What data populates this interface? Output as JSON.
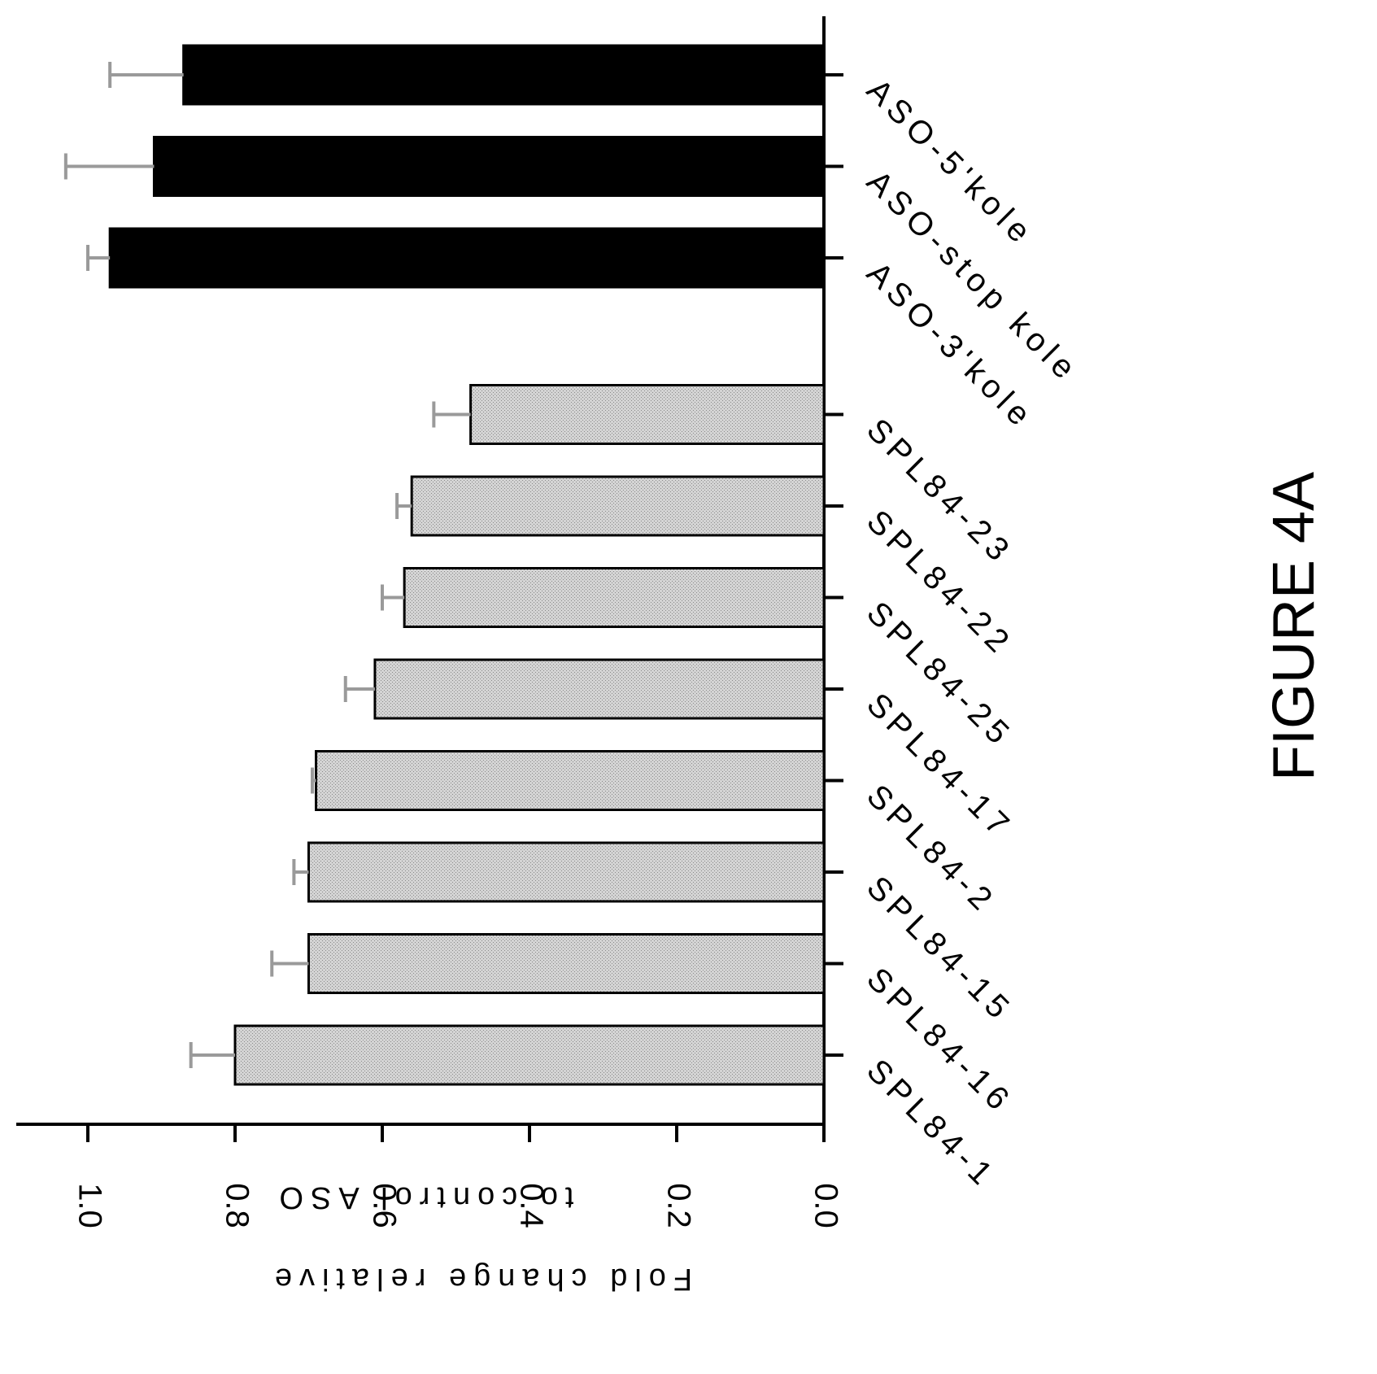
{
  "figure_label": "FIGURE 4A",
  "chart_data": {
    "type": "bar",
    "orientation": "horizontal",
    "ylabel_line1": "Fold change relative",
    "ylabel_line2": "to control ASO",
    "ylim": [
      0,
      1.1
    ],
    "ticks": [
      {
        "value": 0.0,
        "label": "0.0"
      },
      {
        "value": 0.2,
        "label": "0.2"
      },
      {
        "value": 0.4,
        "label": "0.4"
      },
      {
        "value": 0.6,
        "label": "0.6"
      },
      {
        "value": 0.8,
        "label": "0.8"
      },
      {
        "value": 1.0,
        "label": "1.0"
      }
    ],
    "categories": [
      "SPL84-1",
      "SPL84-16",
      "SPL84-15",
      "SPL84-2",
      "SPL84-17",
      "SPL84-25",
      "SPL84-22",
      "SPL84-23",
      "ASO-3'kole",
      "ASO-stop kole",
      "ASO-5'kole"
    ],
    "values": [
      0.8,
      0.7,
      0.7,
      0.69,
      0.61,
      0.57,
      0.56,
      0.48,
      0.97,
      0.91,
      0.87
    ],
    "errors": [
      0.06,
      0.05,
      0.02,
      0.005,
      0.04,
      0.03,
      0.02,
      0.05,
      0.03,
      0.12,
      0.1
    ],
    "groups": [
      {
        "categories": [
          "SPL84-1",
          "SPL84-16",
          "SPL84-15",
          "SPL84-2",
          "SPL84-17",
          "SPL84-25",
          "SPL84-22",
          "SPL84-23"
        ],
        "fill": "#c8c8c8"
      },
      {
        "categories": [
          "ASO-3'kole",
          "ASO-stop kole",
          "ASO-5'kole"
        ],
        "fill": "#000000"
      }
    ],
    "error_bar_color": "#9a9a9a",
    "grid": false
  }
}
